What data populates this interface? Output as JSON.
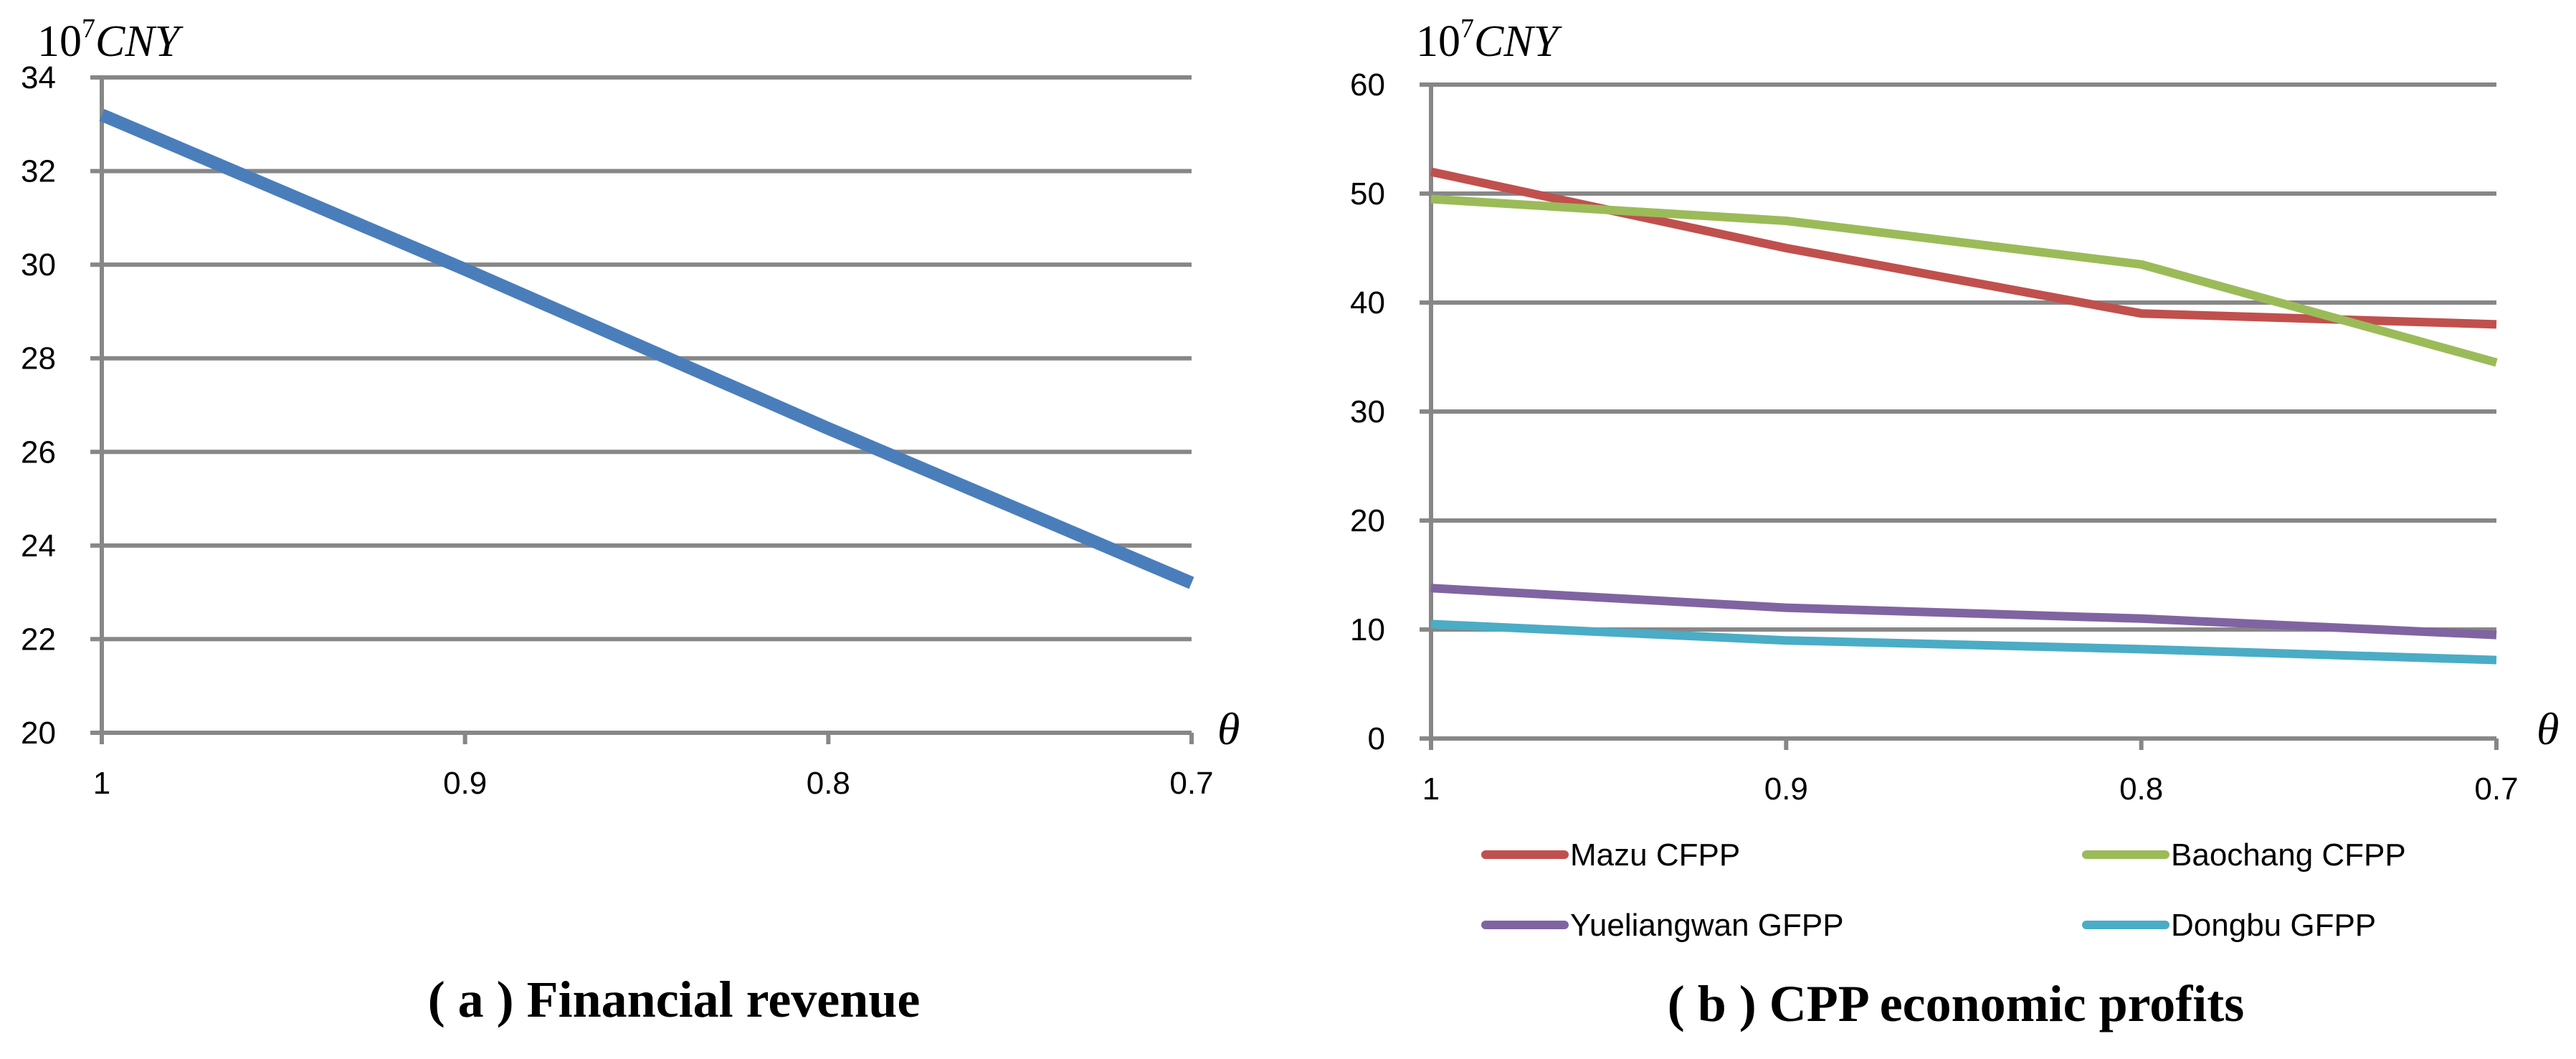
{
  "chart_data": [
    {
      "type": "line",
      "title": "( a ) Financial revenue",
      "unit_base": "10",
      "unit_exp": "7",
      "unit_label": "CNY",
      "xlabel": "θ",
      "categories": [
        "1",
        "0.9",
        "0.8",
        "0.7"
      ],
      "ylim": [
        20,
        34
      ],
      "yticks": [
        20,
        22,
        24,
        26,
        28,
        30,
        32,
        34
      ],
      "grid": true,
      "series": [
        {
          "name": "Financial revenue",
          "color": "#4a7ebb",
          "values": [
            33.2,
            29.9,
            26.5,
            23.2
          ]
        }
      ]
    },
    {
      "type": "line",
      "title": "( b ) CPP economic profits",
      "unit_base": "10",
      "unit_exp": "7",
      "unit_label": "CNY",
      "xlabel": "θ",
      "categories": [
        "1",
        "0.9",
        "0.8",
        "0.7"
      ],
      "ylim": [
        0,
        60
      ],
      "yticks": [
        0,
        10,
        20,
        30,
        40,
        50,
        60
      ],
      "grid": true,
      "legend": "bottom",
      "series": [
        {
          "name": "Mazu CFPP",
          "color": "#c0504d",
          "values": [
            52,
            45,
            39,
            38
          ]
        },
        {
          "name": "Baochang CFPP",
          "color": "#9bbb59",
          "values": [
            49.5,
            47.5,
            43.5,
            34.5
          ]
        },
        {
          "name": "Yueliangwan GFPP",
          "color": "#8064a2",
          "values": [
            13.8,
            12,
            11,
            9.5
          ]
        },
        {
          "name": "Dongbu GFPP",
          "color": "#4bacc6",
          "values": [
            10.5,
            9,
            8.2,
            7.2
          ]
        }
      ]
    }
  ]
}
